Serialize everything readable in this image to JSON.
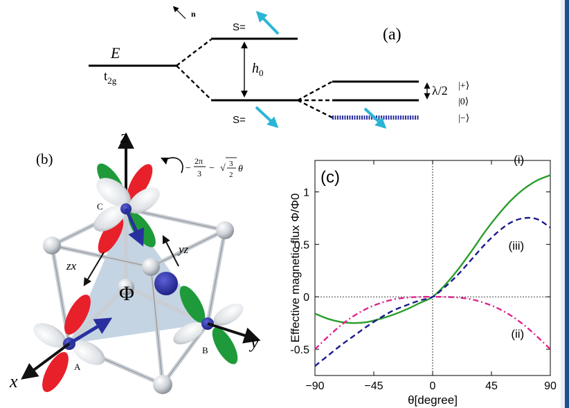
{
  "panel_a": {
    "label": "(a)",
    "n_label": "n",
    "E_label": "E",
    "t2g_label": "t",
    "t2g_sub": "2g",
    "S_upper": "S=",
    "S_lower": "S=",
    "h0_label": "h",
    "h0_sub": "0",
    "lambda_label": "λ/2",
    "ket_plus": "|+⟩",
    "ket_zero": "|0⟩",
    "ket_minus": "|−⟩",
    "spin_color": "#29b5d6"
  },
  "panel_b": {
    "label": "(b)",
    "axis_z": "z",
    "axis_x": "x",
    "axis_y": "y",
    "rotation_text": "−2π/3 − √(3/2) θ",
    "rot_a": "2π",
    "rot_b": "3",
    "rot_c": "3",
    "rot_d": "2",
    "rot_theta": "θ",
    "zx_label": "zx",
    "yz_label": "yz",
    "flux_label": "Φ",
    "site_A": "A",
    "site_B": "B",
    "site_C": "C",
    "colors": {
      "red": "#e8202a",
      "green": "#1f9a3a",
      "blue": "#2a2fa0",
      "tri": "#b7c9dc"
    }
  },
  "panel_c": {
    "label": "(c)",
    "series_labels": [
      "(i)",
      "(ii)",
      "(iii)"
    ]
  },
  "chart_data": {
    "type": "line",
    "xlabel": "θ[degree]",
    "ylabel": "Effective magnetic flux  Φ/Φ0",
    "xlim": [
      -90,
      90
    ],
    "ylim": [
      -0.75,
      1.3
    ],
    "xticks": [
      "−90",
      "−45",
      "0",
      "45",
      "90"
    ],
    "yticks": [
      "-0.5",
      "0",
      "0.5",
      "1"
    ],
    "x": [
      -90,
      -80,
      -70,
      -60,
      -50,
      -40,
      -30,
      -20,
      -10,
      0,
      10,
      20,
      30,
      40,
      50,
      60,
      70,
      80,
      90
    ],
    "series": [
      {
        "name": "(i)",
        "color": "#2a9d2a",
        "dash": "solid",
        "values": [
          -0.16,
          -0.21,
          -0.24,
          -0.25,
          -0.24,
          -0.21,
          -0.17,
          -0.12,
          -0.06,
          0.0,
          0.12,
          0.27,
          0.44,
          0.62,
          0.78,
          0.92,
          1.03,
          1.11,
          1.16
        ]
      },
      {
        "name": "(ii)",
        "color": "#e0208c",
        "dash": "dashdot",
        "values": [
          -0.5,
          -0.38,
          -0.27,
          -0.18,
          -0.11,
          -0.06,
          -0.025,
          -0.008,
          -0.001,
          0.0,
          -0.001,
          -0.008,
          -0.025,
          -0.06,
          -0.11,
          -0.18,
          -0.27,
          -0.38,
          -0.5
        ]
      },
      {
        "name": "(iii)",
        "color": "#1a1a8c",
        "dash": "dashed",
        "values": [
          -0.66,
          -0.56,
          -0.46,
          -0.37,
          -0.28,
          -0.2,
          -0.13,
          -0.08,
          -0.035,
          0.0,
          0.1,
          0.22,
          0.36,
          0.5,
          0.62,
          0.71,
          0.75,
          0.74,
          0.66
        ]
      }
    ]
  }
}
